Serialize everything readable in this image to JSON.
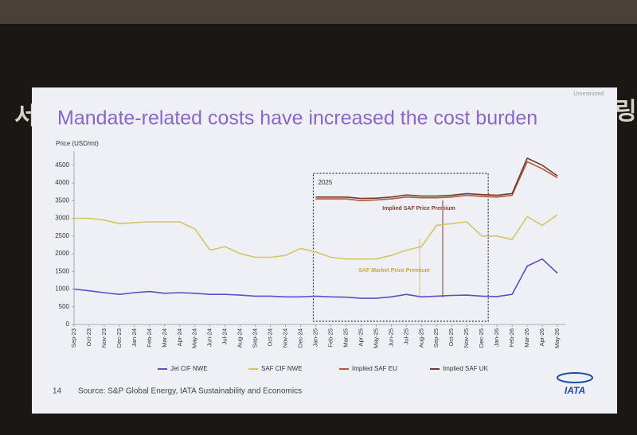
{
  "background_text": [
    "서",
    "링"
  ],
  "slide": {
    "classification": "Unrestricted",
    "page_number": "14",
    "source": "Source: S&P Global Energy, IATA Sustainability and Economics",
    "logo": "IATA"
  },
  "chart_data": {
    "type": "line",
    "title": "Mandate-related costs have increased the cost burden",
    "y_label": "Price (USD/mt)",
    "categories": [
      "Sep-23",
      "Oct-23",
      "Nov-23",
      "Dec-23",
      "Jan-24",
      "Feb-24",
      "Mar-24",
      "Apr-24",
      "May-24",
      "Jun-24",
      "Jul-24",
      "Aug-24",
      "Sep-24",
      "Oct-24",
      "Nov-24",
      "Dec-24",
      "Jan-25",
      "Feb-25",
      "Mar-25",
      "Apr-25",
      "May-25",
      "Jun-25",
      "Jul-25",
      "Aug-25",
      "Sep-25",
      "Oct-25",
      "Nov-25",
      "Dec-25",
      "Jan-26",
      "Feb-26",
      "Mar-26",
      "Apr-26",
      "May-26"
    ],
    "series": [
      {
        "name": "Jet CIF NWE",
        "color": "#5a4fc4",
        "values": [
          1000,
          950,
          900,
          850,
          900,
          930,
          880,
          900,
          880,
          850,
          850,
          830,
          800,
          800,
          780,
          780,
          800,
          780,
          770,
          740,
          740,
          780,
          850,
          780,
          800,
          820,
          830,
          800,
          790,
          850,
          1650,
          1850,
          1450
        ]
      },
      {
        "name": "SAF CIF NWE",
        "color": "#d6c36a",
        "values": [
          3000,
          3000,
          2950,
          2850,
          2880,
          2900,
          2900,
          2900,
          2700,
          2100,
          2200,
          2000,
          1900,
          1900,
          1950,
          2150,
          2050,
          1900,
          1850,
          1850,
          1850,
          1950,
          2100,
          2200,
          2800,
          2850,
          2900,
          2500,
          2500,
          2400,
          3050,
          2800,
          3100
        ]
      },
      {
        "name": "Implied SAF EU",
        "color": "#b5573f",
        "values": [
          null,
          null,
          null,
          null,
          null,
          null,
          null,
          null,
          null,
          null,
          null,
          null,
          null,
          null,
          null,
          null,
          3550,
          3550,
          3550,
          3500,
          3520,
          3550,
          3600,
          3580,
          3580,
          3600,
          3650,
          3620,
          3600,
          3650,
          4600,
          4400,
          4150
        ]
      },
      {
        "name": "Implied SAF UK",
        "color": "#6e3d30",
        "values": [
          null,
          null,
          null,
          null,
          null,
          null,
          null,
          null,
          null,
          null,
          null,
          null,
          null,
          null,
          null,
          null,
          3600,
          3600,
          3600,
          3560,
          3570,
          3600,
          3660,
          3630,
          3630,
          3650,
          3700,
          3670,
          3650,
          3700,
          4700,
          4500,
          4200
        ]
      }
    ],
    "ylim": [
      0,
      4900
    ],
    "yticks": [
      0,
      500,
      1000,
      1500,
      2000,
      2500,
      3000,
      3500,
      4000,
      4500
    ],
    "annotations": [
      "2025",
      "Implied SAF Price Premium",
      "SAF Market Price Premium"
    ]
  }
}
